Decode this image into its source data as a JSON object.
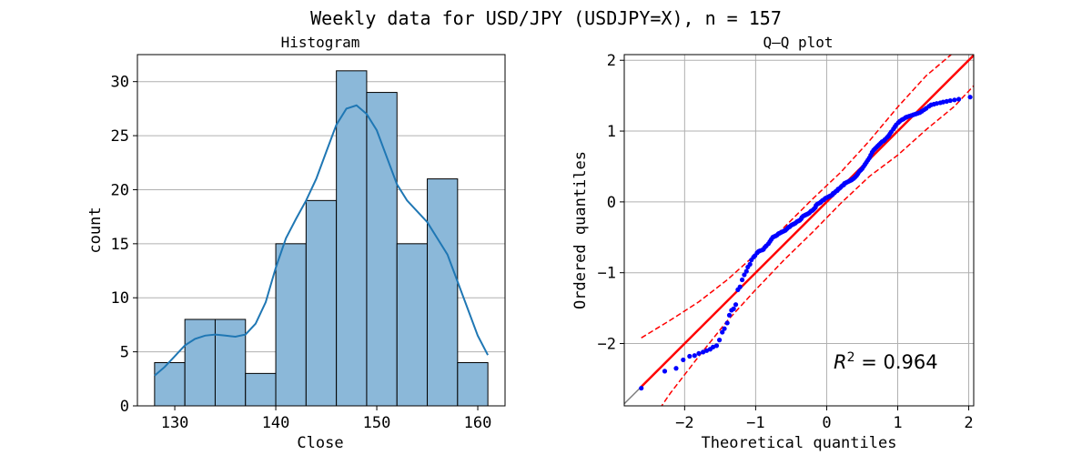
{
  "figure_title": "Weekly data for USD/JPY (USDJPY=X), n = 157",
  "colors": {
    "bar_fill": "#8bb8d9",
    "kde_line": "#1f77b4",
    "qq_points": "#0000ff",
    "fit_line": "#ff0000",
    "band_line": "#ff0000",
    "grid": "#b0b0b0",
    "diagonal": "#808080"
  },
  "chart_data": [
    {
      "type": "bar",
      "title": "Histogram",
      "xlabel": "Close",
      "ylabel": "count",
      "bin_edges": [
        128.0,
        131.0,
        134.0,
        137.0,
        140.0,
        143.0,
        146.0,
        149.0,
        152.0,
        155.0,
        158.0,
        161.0
      ],
      "values": [
        4,
        8,
        8,
        3,
        15,
        19,
        31,
        29,
        15,
        21,
        4
      ],
      "kde": {
        "x": [
          128,
          129,
          130,
          131,
          132,
          133,
          134,
          135,
          136,
          137,
          138,
          139,
          140,
          141,
          142,
          143,
          144,
          145,
          146,
          147,
          148,
          149,
          150,
          151,
          152,
          153,
          154,
          155,
          156,
          157,
          158,
          159,
          160,
          161
        ],
        "y": [
          2.8,
          3.6,
          4.6,
          5.6,
          6.2,
          6.5,
          6.6,
          6.5,
          6.4,
          6.6,
          7.6,
          9.6,
          12.8,
          15.5,
          17.3,
          19.0,
          21.0,
          23.5,
          26.0,
          27.5,
          27.8,
          27.0,
          25.5,
          23.0,
          20.5,
          19.0,
          18.0,
          17.0,
          15.5,
          14.0,
          11.5,
          9.0,
          6.5,
          4.7
        ]
      },
      "xticks": [
        130,
        140,
        150,
        160
      ],
      "yticks": [
        0,
        5,
        10,
        15,
        20,
        25,
        30
      ],
      "xlim": [
        126.3,
        162.7
      ],
      "ylim": [
        0,
        32.5
      ],
      "grid": "y"
    },
    {
      "type": "scatter",
      "title": "Q–Q plot",
      "xlabel": "Theoretical quantiles",
      "ylabel": "Ordered quantiles",
      "annotation": "R² = 0.964",
      "annotation_math": {
        "base": "R",
        "sup": "2",
        "rest": " = 0.964"
      },
      "xticks": [
        -2,
        -1,
        0,
        1,
        2
      ],
      "xtick_labels": [
        "−2",
        "−1",
        "0",
        "1",
        "2"
      ],
      "yticks": [
        -2,
        -1,
        0,
        1,
        2
      ],
      "ytick_labels": [
        "−2",
        "−1",
        "0",
        "1",
        "2"
      ],
      "xlim": [
        -2.85,
        2.07
      ],
      "ylim": [
        -2.88,
        2.08
      ],
      "grid": "both",
      "points": [
        [
          -2.61,
          -2.63
        ],
        [
          -2.28,
          -2.39
        ],
        [
          -2.12,
          -2.35
        ],
        [
          -2.02,
          -2.23
        ],
        [
          -1.93,
          -2.18
        ],
        [
          -1.86,
          -2.17
        ],
        [
          -1.8,
          -2.14
        ],
        [
          -1.74,
          -2.12
        ],
        [
          -1.69,
          -2.1
        ],
        [
          -1.64,
          -2.08
        ],
        [
          -1.6,
          -2.05
        ],
        [
          -1.55,
          -2.03
        ],
        [
          -1.51,
          -1.95
        ],
        [
          -1.47,
          -1.84
        ],
        [
          -1.44,
          -1.79
        ],
        [
          -1.4,
          -1.71
        ],
        [
          -1.37,
          -1.6
        ],
        [
          -1.34,
          -1.53
        ],
        [
          -1.31,
          -1.51
        ],
        [
          -1.28,
          -1.45
        ],
        [
          -1.25,
          -1.24
        ],
        [
          -1.22,
          -1.2
        ],
        [
          -1.19,
          -1.1
        ],
        [
          -1.16,
          -1.03
        ],
        [
          -1.13,
          -0.98
        ],
        [
          -1.11,
          -0.92
        ],
        [
          -1.08,
          -0.88
        ],
        [
          -1.06,
          -0.82
        ],
        [
          -1.03,
          -0.78
        ],
        [
          -1.01,
          -0.76
        ],
        [
          -0.98,
          -0.72
        ],
        [
          -0.96,
          -0.7
        ],
        [
          -0.94,
          -0.69
        ],
        [
          -0.91,
          -0.68
        ],
        [
          -0.89,
          -0.67
        ],
        [
          -0.87,
          -0.64
        ],
        [
          -0.85,
          -0.62
        ],
        [
          -0.82,
          -0.59
        ],
        [
          -0.8,
          -0.56
        ],
        [
          -0.78,
          -0.53
        ],
        [
          -0.76,
          -0.5
        ],
        [
          -0.74,
          -0.49
        ],
        [
          -0.72,
          -0.48
        ],
        [
          -0.7,
          -0.47
        ],
        [
          -0.68,
          -0.45
        ],
        [
          -0.66,
          -0.44
        ],
        [
          -0.64,
          -0.43
        ],
        [
          -0.62,
          -0.42
        ],
        [
          -0.6,
          -0.41
        ],
        [
          -0.58,
          -0.4
        ],
        [
          -0.56,
          -0.38
        ],
        [
          -0.54,
          -0.36
        ],
        [
          -0.52,
          -0.35
        ],
        [
          -0.5,
          -0.33
        ],
        [
          -0.48,
          -0.32
        ],
        [
          -0.46,
          -0.31
        ],
        [
          -0.44,
          -0.3
        ],
        [
          -0.42,
          -0.28
        ],
        [
          -0.4,
          -0.27
        ],
        [
          -0.38,
          -0.26
        ],
        [
          -0.36,
          -0.24
        ],
        [
          -0.35,
          -0.22
        ],
        [
          -0.33,
          -0.2
        ],
        [
          -0.31,
          -0.19
        ],
        [
          -0.29,
          -0.18
        ],
        [
          -0.27,
          -0.17
        ],
        [
          -0.25,
          -0.16
        ],
        [
          -0.24,
          -0.15
        ],
        [
          -0.22,
          -0.13
        ],
        [
          -0.2,
          -0.12
        ],
        [
          -0.18,
          -0.1
        ],
        [
          -0.16,
          -0.08
        ],
        [
          -0.15,
          -0.05
        ],
        [
          -0.13,
          -0.03
        ],
        [
          -0.11,
          -0.02
        ],
        [
          -0.09,
          -0.01
        ],
        [
          -0.08,
          0.0
        ],
        [
          -0.06,
          0.02
        ],
        [
          -0.04,
          0.03
        ],
        [
          -0.02,
          0.05
        ],
        [
          0.0,
          0.06
        ],
        [
          0.02,
          0.07
        ],
        [
          0.04,
          0.08
        ],
        [
          0.06,
          0.09
        ],
        [
          0.08,
          0.1
        ],
        [
          0.09,
          0.12
        ],
        [
          0.11,
          0.13
        ],
        [
          0.13,
          0.15
        ],
        [
          0.15,
          0.16
        ],
        [
          0.16,
          0.18
        ],
        [
          0.18,
          0.19
        ],
        [
          0.2,
          0.21
        ],
        [
          0.22,
          0.23
        ],
        [
          0.24,
          0.24
        ],
        [
          0.25,
          0.26
        ],
        [
          0.27,
          0.27
        ],
        [
          0.29,
          0.28
        ],
        [
          0.31,
          0.29
        ],
        [
          0.33,
          0.3
        ],
        [
          0.35,
          0.31
        ],
        [
          0.36,
          0.32
        ],
        [
          0.38,
          0.33
        ],
        [
          0.4,
          0.35
        ],
        [
          0.42,
          0.37
        ],
        [
          0.44,
          0.4
        ],
        [
          0.46,
          0.43
        ],
        [
          0.48,
          0.45
        ],
        [
          0.5,
          0.47
        ],
        [
          0.52,
          0.5
        ],
        [
          0.54,
          0.53
        ],
        [
          0.56,
          0.56
        ],
        [
          0.58,
          0.59
        ],
        [
          0.6,
          0.62
        ],
        [
          0.62,
          0.66
        ],
        [
          0.64,
          0.7
        ],
        [
          0.66,
          0.73
        ],
        [
          0.68,
          0.75
        ],
        [
          0.7,
          0.77
        ],
        [
          0.72,
          0.79
        ],
        [
          0.74,
          0.81
        ],
        [
          0.76,
          0.83
        ],
        [
          0.78,
          0.85
        ],
        [
          0.8,
          0.86
        ],
        [
          0.82,
          0.88
        ],
        [
          0.85,
          0.91
        ],
        [
          0.87,
          0.93
        ],
        [
          0.89,
          0.96
        ],
        [
          0.91,
          0.99
        ],
        [
          0.94,
          1.03
        ],
        [
          0.96,
          1.06
        ],
        [
          0.98,
          1.09
        ],
        [
          1.01,
          1.12
        ],
        [
          1.03,
          1.14
        ],
        [
          1.06,
          1.16
        ],
        [
          1.08,
          1.17
        ],
        [
          1.11,
          1.19
        ],
        [
          1.13,
          1.2
        ],
        [
          1.16,
          1.21
        ],
        [
          1.19,
          1.22
        ],
        [
          1.22,
          1.23
        ],
        [
          1.25,
          1.24
        ],
        [
          1.28,
          1.25
        ],
        [
          1.31,
          1.26
        ],
        [
          1.34,
          1.28
        ],
        [
          1.37,
          1.3
        ],
        [
          1.4,
          1.32
        ],
        [
          1.44,
          1.35
        ],
        [
          1.47,
          1.37
        ],
        [
          1.51,
          1.38
        ],
        [
          1.55,
          1.39
        ],
        [
          1.6,
          1.4
        ],
        [
          1.64,
          1.41
        ],
        [
          1.69,
          1.42
        ],
        [
          1.74,
          1.43
        ],
        [
          1.8,
          1.44
        ],
        [
          1.86,
          1.45
        ],
        [
          2.02,
          1.48
        ]
      ],
      "fit_line": {
        "slope": 1.0,
        "intercept": 0.0,
        "x_range": [
          -2.61,
          2.07
        ]
      },
      "confidence_band": {
        "upper": [
          [
            -2.61,
            -1.92
          ],
          [
            -2.2,
            -1.67
          ],
          [
            -1.8,
            -1.41
          ],
          [
            -1.4,
            -1.1
          ],
          [
            -1.0,
            -0.74
          ],
          [
            -0.6,
            -0.36
          ],
          [
            -0.2,
            0.04
          ],
          [
            0.2,
            0.42
          ],
          [
            0.6,
            0.86
          ],
          [
            1.0,
            1.34
          ],
          [
            1.4,
            1.78
          ],
          [
            1.8,
            2.12
          ]
        ],
        "lower": [
          [
            -2.61,
            -3.3
          ],
          [
            -2.2,
            -2.7
          ],
          [
            -1.8,
            -2.18
          ],
          [
            -1.4,
            -1.68
          ],
          [
            -1.0,
            -1.24
          ],
          [
            -0.6,
            -0.82
          ],
          [
            -0.2,
            -0.43
          ],
          [
            0.2,
            -0.02
          ],
          [
            0.6,
            0.36
          ],
          [
            1.0,
            0.66
          ],
          [
            1.4,
            1.02
          ],
          [
            1.8,
            1.35
          ],
          [
            2.07,
            1.64
          ]
        ]
      }
    }
  ]
}
